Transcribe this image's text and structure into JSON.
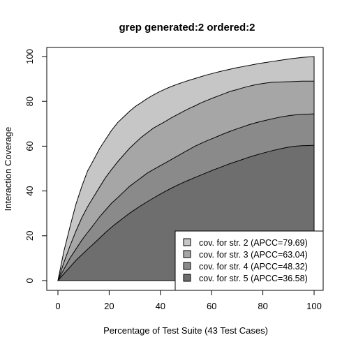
{
  "chart_data": {
    "type": "area",
    "title": "grep generated:2 ordered:2",
    "xlabel": "Percentage of Test Suite (43 Test Cases)",
    "ylabel": "Interaction Coverage",
    "xlim": [
      0,
      100
    ],
    "ylim": [
      0,
      100
    ],
    "xticks": [
      "0",
      "20",
      "40",
      "60",
      "80",
      "100"
    ],
    "yticks": [
      "0",
      "20",
      "40",
      "60",
      "80",
      "100"
    ],
    "legend_position": "bottom-right",
    "x": [
      0,
      2.3,
      4.7,
      7,
      9.3,
      11.6,
      14,
      16.3,
      18.6,
      20.9,
      23.3,
      25.6,
      27.9,
      30.2,
      32.6,
      34.9,
      37.2,
      39.5,
      41.9,
      44.2,
      46.5,
      48.8,
      51.2,
      53.5,
      55.8,
      58.1,
      60.5,
      62.8,
      65.1,
      67.4,
      69.8,
      72.1,
      74.4,
      76.7,
      79.1,
      81.4,
      83.7,
      86,
      88.4,
      90.7,
      93,
      95.3,
      97.7,
      100
    ],
    "series": [
      {
        "name": "cov. for str. 2 (APCC=79.69)",
        "color": "#c6c6c6",
        "values": [
          0,
          13,
          24,
          34,
          42,
          49,
          54,
          59,
          63,
          67,
          70.5,
          73,
          75.5,
          77.7,
          79.5,
          81.3,
          82.8,
          84.2,
          85.5,
          86.6,
          87.6,
          88.5,
          89.4,
          90.2,
          91,
          91.8,
          92.5,
          93.2,
          93.8,
          94.4,
          95,
          95.5,
          96,
          96.5,
          97,
          97.4,
          97.8,
          98.2,
          98.6,
          99,
          99.3,
          99.6,
          99.8,
          100
        ]
      },
      {
        "name": "cov. for str. 3 (APCC=63.04)",
        "color": "#a6a6a6",
        "values": [
          0,
          8,
          15.5,
          22,
          28,
          33,
          37.5,
          41.8,
          46,
          49.5,
          53,
          56,
          59,
          61.5,
          64,
          66,
          68,
          69.5,
          71,
          72.6,
          74,
          75.4,
          76.8,
          78,
          79.3,
          80.4,
          81.5,
          82.5,
          83.5,
          84.5,
          85.2,
          86,
          86.7,
          87.3,
          87.8,
          88.2,
          88.5,
          88.6,
          88.7,
          88.8,
          88.9,
          89,
          89,
          89
        ]
      },
      {
        "name": "cov. for str. 4 (APCC=48.32)",
        "color": "#8a8a8a",
        "values": [
          0,
          5,
          10,
          14,
          18,
          21.5,
          25,
          28.5,
          31.5,
          34.5,
          37,
          39.5,
          42,
          44,
          46,
          48,
          49.5,
          51,
          52.5,
          54,
          55.5,
          57,
          58.5,
          60,
          61.2,
          62.4,
          63.5,
          64.6,
          65.7,
          66.7,
          67.7,
          68.6,
          69.5,
          70.3,
          71,
          71.6,
          72.2,
          72.8,
          73.3,
          73.7,
          74,
          74.2,
          74.3,
          74.4
        ]
      },
      {
        "name": "cov. for str. 5 (APCC=36.58)",
        "color": "#6e6e6e",
        "values": [
          0,
          3,
          6,
          9,
          11.5,
          14,
          16.5,
          19,
          21.5,
          23.8,
          26,
          28,
          30,
          31.8,
          33.6,
          35.2,
          36.8,
          38.3,
          39.8,
          41.2,
          42.5,
          43.7,
          44.9,
          46,
          47.1,
          48.2,
          49.3,
          50.3,
          51.3,
          52.3,
          53.2,
          54.1,
          55,
          55.8,
          56.6,
          57.3,
          58,
          58.6,
          59.2,
          59.7,
          60,
          60.2,
          60.3,
          60.4
        ]
      }
    ]
  }
}
